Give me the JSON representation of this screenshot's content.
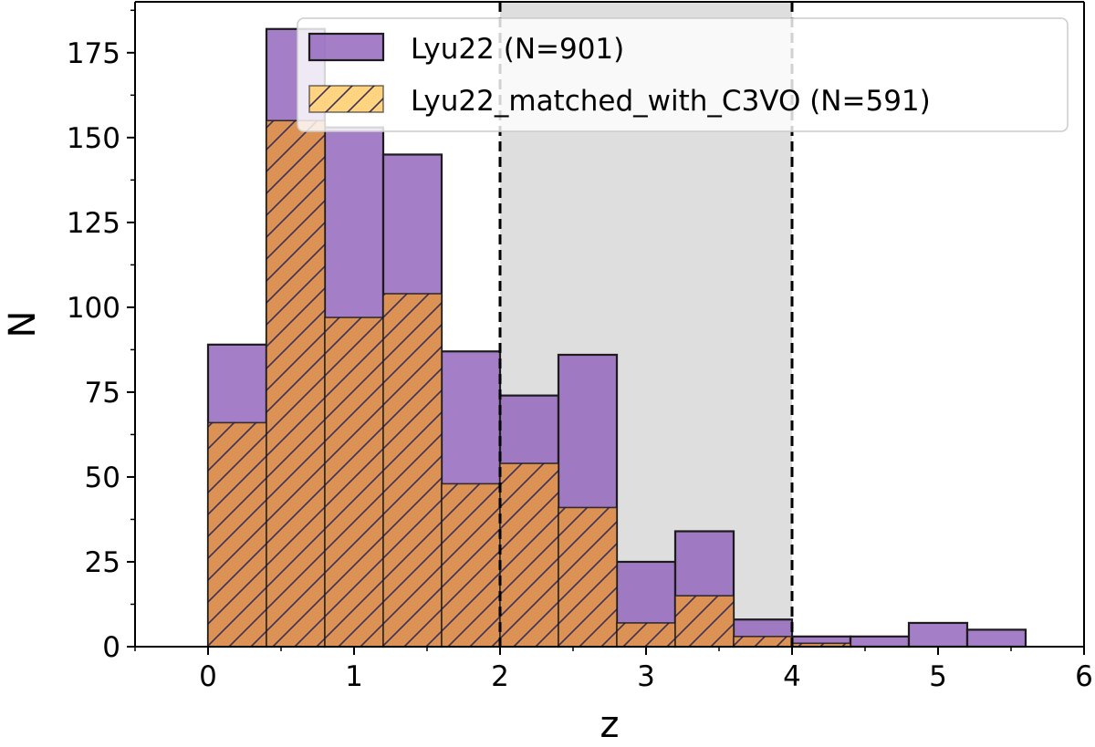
{
  "chart_data": {
    "type": "bar",
    "xlabel": "z",
    "ylabel": "N",
    "xlim": [
      -0.5,
      6
    ],
    "ylim": [
      0,
      190
    ],
    "xticks": [
      0,
      1,
      2,
      3,
      4,
      5,
      6
    ],
    "yticks": [
      0,
      25,
      50,
      75,
      100,
      125,
      150,
      175
    ],
    "bin_edges": [
      0,
      0.4,
      0.8,
      1.2,
      1.6,
      2.0,
      2.4,
      2.8,
      3.2,
      3.6,
      4.0,
      4.4,
      4.8,
      5.2,
      5.6
    ],
    "shaded_region": [
      2,
      4
    ],
    "vertical_lines": [
      2,
      4
    ],
    "legend_position": "upper right",
    "series": [
      {
        "name": "Lyu22 (N=901)",
        "color": "#9467bd",
        "hatch": false,
        "values": [
          89,
          182,
          153,
          145,
          87,
          74,
          86,
          25,
          34,
          8,
          3,
          3,
          7,
          5
        ]
      },
      {
        "name": "Lyu22_matched_with_C3VO (N=591)",
        "color": "#e0944f",
        "legend_color": "#ffd27a",
        "hatch": true,
        "values": [
          66,
          155,
          97,
          104,
          48,
          54,
          41,
          7,
          15,
          3,
          1,
          0,
          0,
          0
        ]
      }
    ]
  }
}
